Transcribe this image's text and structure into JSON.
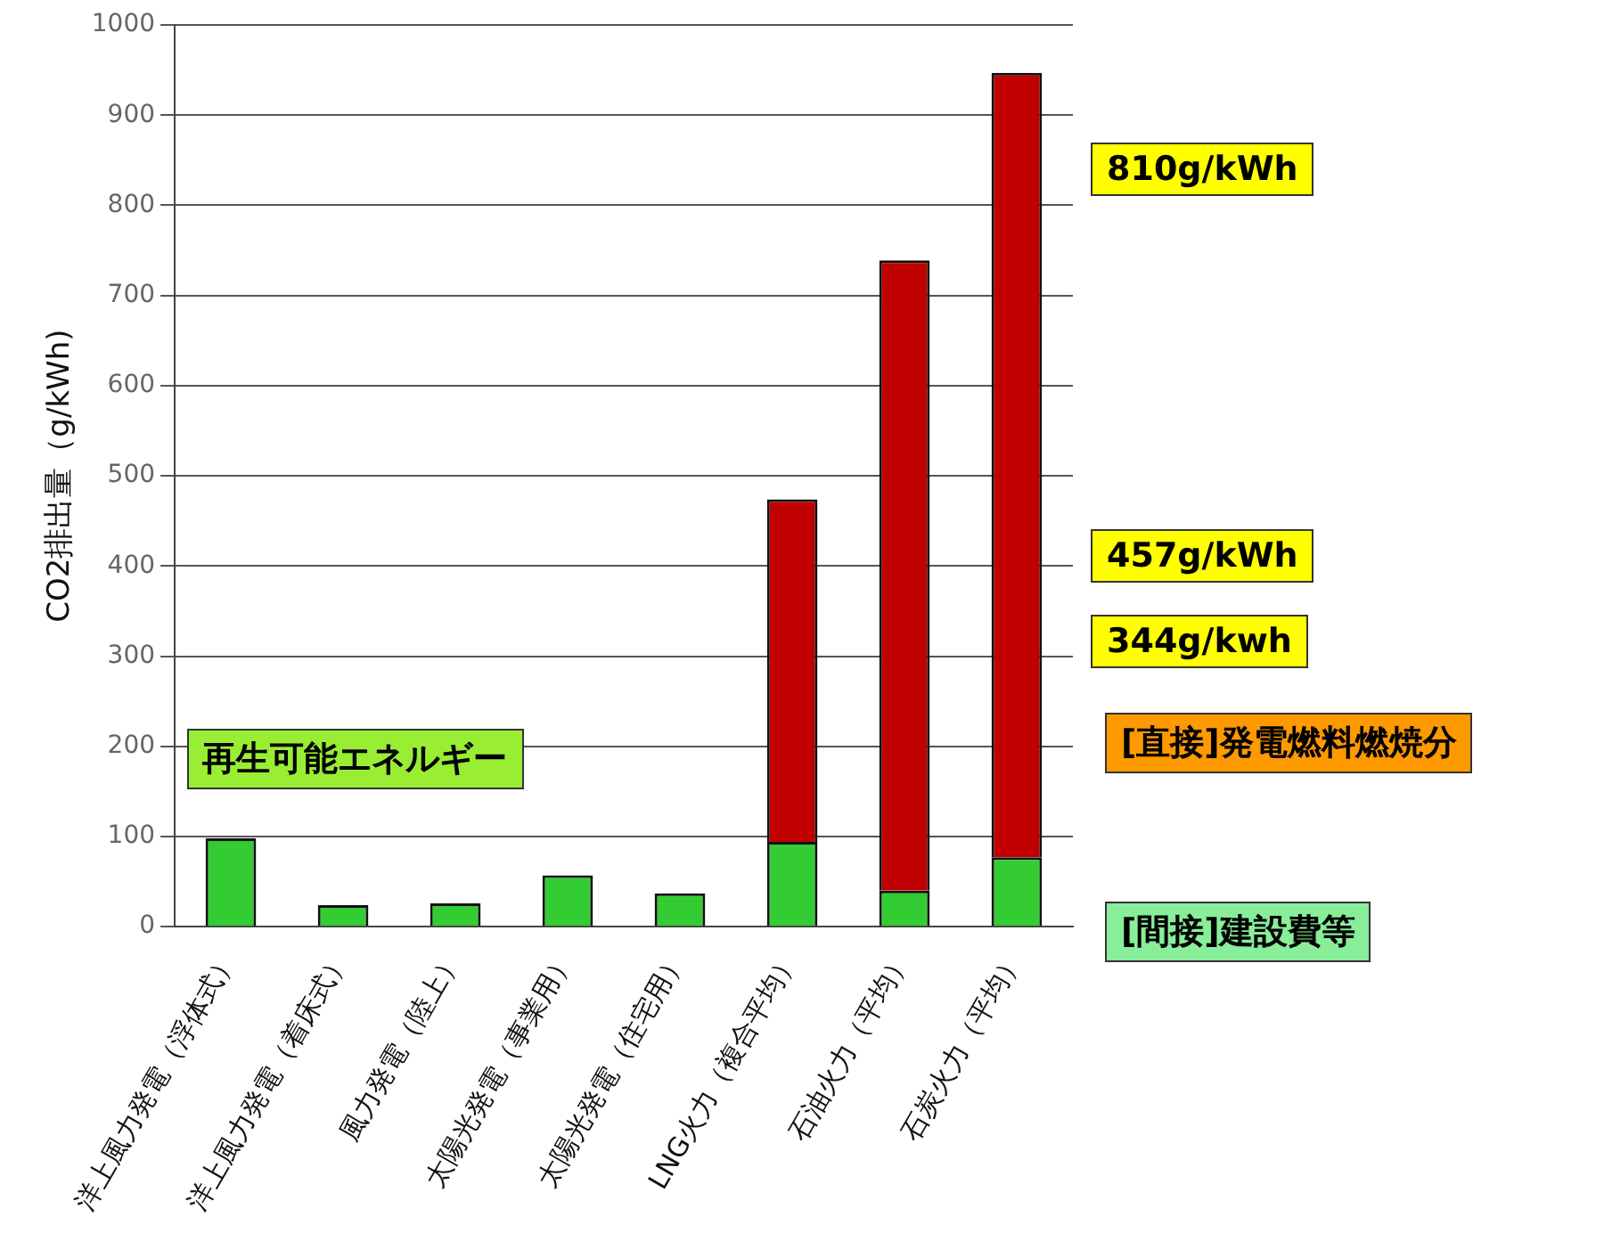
{
  "chart_data": {
    "type": "bar",
    "stacked": true,
    "ylabel": "CO2排出量（g/kWh)",
    "categories": [
      "洋上風力発電（浮体式）",
      "洋上風力発電（着床式）",
      "風力発電（陸上）",
      "太陽光発電（事業用）",
      "太陽光発電（住宅用）",
      "LNG火力（複合平均）",
      "石油火力（平均）",
      "石炭火力（平均）"
    ],
    "series": [
      {
        "name": "[間接]建設費等",
        "color": "#33cc33",
        "values": [
          98,
          24,
          26,
          57,
          37,
          94,
          40,
          77
        ]
      },
      {
        "name": "[直接]発電燃料燃焼分",
        "color": "#c00000",
        "values": [
          0,
          0,
          0,
          0,
          0,
          380,
          699,
          870
        ]
      }
    ],
    "ylim": [
      0,
      1000
    ],
    "yticks": [
      0,
      100,
      200,
      300,
      400,
      500,
      600,
      700,
      800,
      900,
      1000
    ],
    "grid": "y",
    "legend": false,
    "annotations": [
      "再生可能エネルギー",
      "810g/kWh",
      "457g/kWh",
      "344g/kwh"
    ]
  }
}
